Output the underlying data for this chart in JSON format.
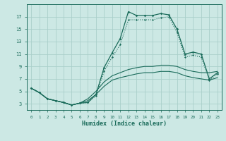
{
  "xlabel": "Humidex (Indice chaleur)",
  "bg_color": "#cce8e4",
  "grid_color": "#aacfca",
  "line_color": "#1a6b5a",
  "xlim": [
    -0.5,
    23.5
  ],
  "ylim": [
    2.0,
    19.0
  ],
  "yticks": [
    3,
    5,
    7,
    9,
    11,
    13,
    15,
    17
  ],
  "xticks": [
    0,
    1,
    2,
    3,
    4,
    5,
    6,
    7,
    8,
    9,
    10,
    11,
    12,
    13,
    14,
    15,
    16,
    17,
    18,
    19,
    20,
    21,
    22,
    23
  ],
  "line1_x": [
    0,
    1,
    2,
    3,
    4,
    5,
    6,
    7,
    8,
    9,
    10,
    11,
    12,
    13,
    14,
    15,
    16,
    17,
    18,
    19,
    20,
    21,
    22,
    23
  ],
  "line1_y": [
    5.5,
    4.8,
    3.8,
    3.5,
    3.2,
    2.8,
    3.1,
    3.2,
    4.5,
    8.8,
    11.2,
    13.5,
    17.8,
    17.2,
    17.2,
    17.2,
    17.5,
    17.3,
    15.0,
    11.0,
    11.3,
    11.0,
    7.0,
    8.0
  ],
  "line2_x": [
    0,
    1,
    2,
    3,
    4,
    5,
    6,
    7,
    8,
    9,
    10,
    11,
    12,
    13,
    14,
    15,
    16,
    17,
    18,
    19,
    20,
    21,
    22,
    23
  ],
  "line2_y": [
    5.5,
    4.8,
    3.8,
    3.5,
    3.2,
    2.8,
    3.1,
    3.2,
    4.3,
    8.2,
    10.5,
    12.5,
    16.5,
    16.5,
    16.5,
    16.5,
    16.8,
    17.0,
    14.5,
    10.5,
    10.8,
    10.5,
    6.8,
    7.8
  ],
  "line3_x": [
    0,
    1,
    2,
    3,
    4,
    5,
    6,
    7,
    8,
    9,
    10,
    11,
    12,
    13,
    14,
    15,
    16,
    17,
    18,
    19,
    20,
    21,
    22,
    23
  ],
  "line3_y": [
    5.5,
    4.8,
    3.8,
    3.5,
    3.2,
    2.8,
    3.1,
    3.8,
    5.0,
    6.5,
    7.5,
    8.0,
    8.5,
    8.8,
    9.0,
    9.0,
    9.2,
    9.2,
    9.0,
    8.5,
    8.2,
    8.0,
    8.0,
    8.2
  ],
  "line4_x": [
    0,
    1,
    2,
    3,
    4,
    5,
    6,
    7,
    8,
    9,
    10,
    11,
    12,
    13,
    14,
    15,
    16,
    17,
    18,
    19,
    20,
    21,
    22,
    23
  ],
  "line4_y": [
    5.5,
    4.8,
    3.8,
    3.5,
    3.2,
    2.8,
    3.1,
    3.5,
    4.5,
    5.8,
    6.8,
    7.2,
    7.5,
    7.8,
    8.0,
    8.0,
    8.2,
    8.2,
    8.0,
    7.5,
    7.2,
    7.0,
    6.8,
    7.2
  ]
}
